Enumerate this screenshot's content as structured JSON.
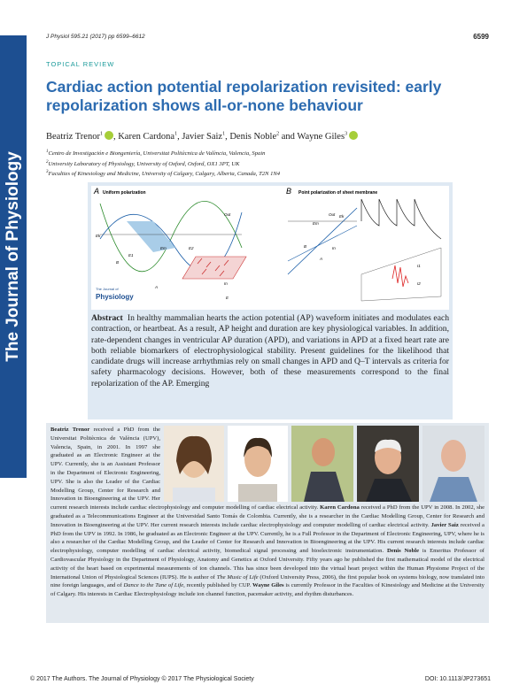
{
  "sidebar": "The Journal of Physiology",
  "header": {
    "citation": "J Physiol 595.21 (2017) pp 6599–6612",
    "page": "6599"
  },
  "section": "TOPICAL REVIEW",
  "title": "Cardiac action potential repolarization revisited: early repolarization shows all-or-none behaviour",
  "authors": [
    {
      "name": "Beatriz Trenor",
      "aff": "1",
      "orcid": true,
      "sep": ","
    },
    {
      "name": "Karen Cardona",
      "aff": "1",
      "orcid": false,
      "sep": ","
    },
    {
      "name": "Javier Saiz",
      "aff": "1",
      "orcid": false,
      "sep": ","
    },
    {
      "name": "Denis Noble",
      "aff": "2",
      "orcid": false,
      "sep": "and"
    },
    {
      "name": "Wayne Giles",
      "aff": "3",
      "orcid": true,
      "sep": ""
    }
  ],
  "affiliations": [
    {
      "num": "1",
      "text": "Centro de Investigación e Biongeniería, Universitat Politècnica de València, Valencia, Spain"
    },
    {
      "num": "2",
      "text": "University Laboratory of Physiology, University of Oxford, Oxford, OX1 3PT, UK"
    },
    {
      "num": "3",
      "text": "Faculties of Kinesiology and Medicine, University of Calgary, Calgary, Alberta, Canada, T2N 1N4"
    }
  ],
  "figure": {
    "panel_a": {
      "letter": "A",
      "title": "Uniform polarization",
      "labels": [
        "Out",
        "In",
        "Ek",
        "E1",
        "Em",
        "E2",
        "B",
        "A",
        "E"
      ]
    },
    "panel_b": {
      "letter": "B",
      "title": "Point polarization of sheet membrane",
      "labels": [
        "Out",
        "In",
        "Em",
        "Ek",
        "B",
        "A",
        "I1",
        "I2"
      ]
    },
    "logo": [
      "The Journal of",
      "Physiology"
    ]
  },
  "abstract": {
    "heading": "Abstract",
    "text": "In healthy mammalian hearts the action potential (AP) waveform initiates and modulates each contraction, or heartbeat. As a result, AP height and duration are key physiological variables. In addition, rate-dependent changes in ventricular AP duration (APD), and variations in APD at a fixed heart rate are both reliable biomarkers of electrophysiological stability. Present guidelines for the likelihood that candidate drugs will increase arrhythmias rely on small changes in APD and Q–T intervals as criteria for safety pharmacology decisions. However, both of these measurements correspond to the final repolarization of the AP. Emerging"
  },
  "bio": [
    {
      "text": "Beatriz Trenor",
      "style": "b"
    },
    {
      "text": " received a PhD from the Universitat Politècnica de València (UPV), Valencia, Spain, in 2001. In 1997 she graduated as an Electronic Engineer at the UPV. Currently, she is an Assistant Professor in the Department of Electronic Engineering, UPV. She is also the Leader of the Cardiac Modelling Group, Center for Research and Innovation in Bioengineering at the UPV. Her current research interests include cardiac electrophysiology and computer modelling of cardiac electrical activity. ",
      "style": "r"
    },
    {
      "text": "Karen Cardona",
      "style": "b"
    },
    {
      "text": " received a PhD from the UPV in 2008. In 2002, she graduated as a Telecommunications Engineer at the Universidad Santo Tomás de Colombia. Currently, she is a researcher in the Cardiac Modelling Group, Center for Research and Innovation in Bioengineering at the UPV. Her current research interests include cardiac electrophysiology and computer modelling of cardiac electrical activity. ",
      "style": "r"
    },
    {
      "text": "Javier Saiz",
      "style": "b"
    },
    {
      "text": " received a PhD from the UPV in 1992. In 1986, he graduated as an Electronic Engineer at the UPV. Currently, he is a Full Professor in the Department of Electronic Engineering, UPV, where he is also a researcher of the Cardiac Modelling Group, and the Leader of Center for Research and Innovation in Bioengineering at the UPV. His current research interests include cardiac electrophysiology, computer modelling of cardiac electrical activity, biomedical signal processing and bioelectronic instrumentation. ",
      "style": "r"
    },
    {
      "text": "Denis Noble",
      "style": "b"
    },
    {
      "text": " is Emeritus Professor of Cardiovascular Physiology in the Department of Physiology, Anatomy and Genetics at Oxford University. Fifty years ago he published the first mathematical model of the electrical activity of the heart based on experimental measurements of ion channels. This has since been developed into the virtual heart project within the Human Physiome Project of the International Union of Physiological Sciences (IUPS). He is author of ",
      "style": "r"
    },
    {
      "text": "The Music of Life",
      "style": "i"
    },
    {
      "text": " (Oxford University Press, 2006), the first popular book on systems biology, now translated into nine foreign languages, and of ",
      "style": "r"
    },
    {
      "text": "Dance to the Tune of Life",
      "style": "i"
    },
    {
      "text": ", recently published by CUP. ",
      "style": "r"
    },
    {
      "text": "Wayne Giles",
      "style": "b"
    },
    {
      "text": " is currently Professor in the Faculties of Kinesiology and Medicine at the University of Calgary. His interests in Cardiac Electrophysiology include ion channel function, pacemaker activity, and rhythm disturbances.",
      "style": "r"
    }
  ],
  "footer": {
    "copyright": "© 2017 The Authors. The Journal of Physiology © 2017 The Physiological Society",
    "doi": "DOI: 10.1113/JP273651"
  }
}
